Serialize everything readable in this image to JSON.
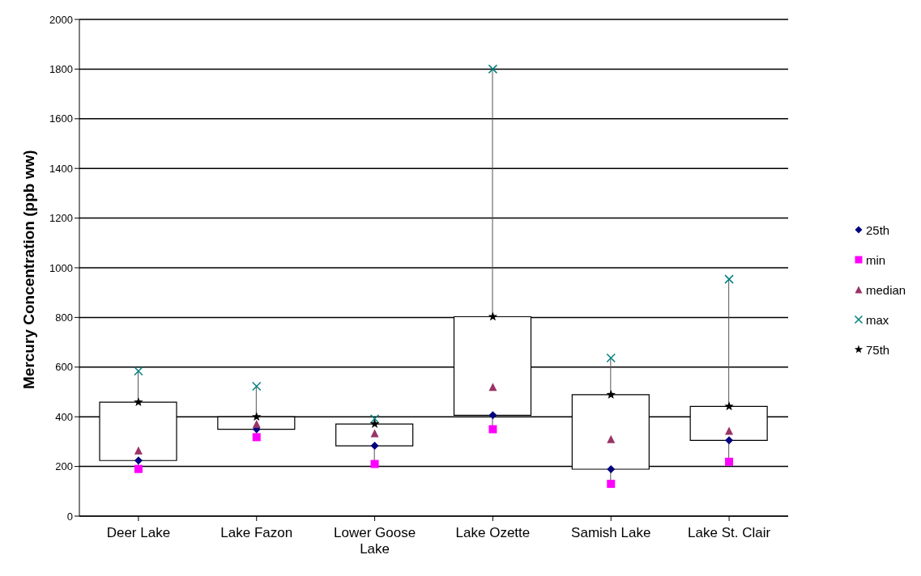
{
  "chart_data": {
    "type": "box",
    "ylabel": "Mercury Concentration (ppb ww)",
    "categories": [
      "Deer Lake",
      "Lake Fazon",
      "Lower Goose Lake",
      "Lake Ozette",
      "Samish Lake",
      "Lake St. Clair"
    ],
    "boxes": [
      {
        "low": 190,
        "q1": 224,
        "q3": 459,
        "high": 584
      },
      {
        "low": 318,
        "q1": 350,
        "q3": 400,
        "high": 523
      },
      {
        "low": 210,
        "q1": 283,
        "q3": 371,
        "high": 392
      },
      {
        "low": 350,
        "q1": 406,
        "q3": 803,
        "high": 1800
      },
      {
        "low": 130,
        "q1": 189,
        "q3": 489,
        "high": 637
      },
      {
        "low": 219,
        "q1": 305,
        "q3": 442,
        "high": 954
      }
    ],
    "series": [
      {
        "name": "25th",
        "type": "scatter",
        "marker": "diamond",
        "color": "#000080",
        "x": [
          "Deer Lake",
          "Lake Fazon",
          "Lower Goose Lake",
          "Lake Ozette",
          "Samish Lake",
          "Lake St. Clair"
        ],
        "values": [
          224,
          350,
          283,
          406,
          189,
          305
        ]
      },
      {
        "name": "min",
        "type": "scatter",
        "marker": "square",
        "color": "#ff00ff",
        "x": [
          "Deer Lake",
          "Lake Fazon",
          "Lower Goose Lake",
          "Lake Ozette",
          "Samish Lake",
          "Lake St. Clair"
        ],
        "values": [
          190,
          318,
          210,
          350,
          130,
          219
        ]
      },
      {
        "name": "median",
        "type": "scatter",
        "marker": "triangle",
        "color": "#993366",
        "x": [
          "Deer Lake",
          "Lake Fazon",
          "Lower Goose Lake",
          "Lake Ozette",
          "Samish Lake",
          "Lake St. Clair"
        ],
        "values": [
          265,
          371,
          334,
          520,
          310,
          344
        ]
      },
      {
        "name": "max",
        "type": "scatter",
        "marker": "cross",
        "color": "#008080",
        "x": [
          "Deer Lake",
          "Lake Fazon",
          "Lower Goose Lake",
          "Lake Ozette",
          "Samish Lake",
          "Lake St. Clair"
        ],
        "values": [
          584,
          523,
          392,
          1800,
          637,
          954
        ]
      },
      {
        "name": "75th",
        "type": "scatter",
        "marker": "star",
        "color": "#000000",
        "x": [
          "Deer Lake",
          "Lake Fazon",
          "Lower Goose Lake",
          "Lake Ozette",
          "Samish Lake",
          "Lake St. Clair"
        ],
        "values": [
          459,
          400,
          371,
          803,
          489,
          442
        ]
      }
    ],
    "ylim": [
      0,
      2000
    ],
    "yticks": [
      0,
      200,
      400,
      600,
      800,
      1000,
      1200,
      1400,
      1600,
      1800,
      2000
    ],
    "grid": "y",
    "legend": "right"
  }
}
